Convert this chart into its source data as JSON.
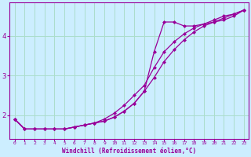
{
  "xlabel": "Windchill (Refroidissement éolien,°C)",
  "ylabel": "",
  "bg_color": "#cceeff",
  "line_color": "#990099",
  "grid_color": "#aaddcc",
  "line1_x": [
    0,
    1,
    2,
    3,
    4,
    5,
    6,
    7,
    8,
    9,
    10,
    11,
    12,
    13,
    14,
    15,
    16,
    17,
    18,
    19,
    20,
    21,
    22,
    23
  ],
  "line1_y": [
    1.9,
    1.65,
    1.65,
    1.65,
    1.65,
    1.65,
    1.7,
    1.75,
    1.8,
    1.85,
    1.95,
    2.1,
    2.3,
    2.6,
    2.95,
    3.35,
    3.65,
    3.9,
    4.1,
    4.25,
    4.35,
    4.45,
    4.55,
    4.65
  ],
  "line2_x": [
    0,
    1,
    2,
    3,
    4,
    5,
    6,
    7,
    8,
    9,
    10,
    11,
    12,
    13,
    14,
    15,
    16,
    17,
    18,
    19,
    20,
    21,
    22,
    23
  ],
  "line2_y": [
    1.9,
    1.65,
    1.65,
    1.65,
    1.65,
    1.65,
    1.7,
    1.75,
    1.8,
    1.85,
    1.95,
    2.1,
    2.3,
    2.6,
    3.6,
    4.35,
    4.35,
    4.25,
    4.25,
    4.3,
    4.35,
    4.4,
    4.5,
    4.65
  ],
  "line3_x": [
    0,
    1,
    2,
    3,
    4,
    5,
    6,
    7,
    8,
    9,
    10,
    11,
    12,
    13,
    14,
    15,
    16,
    17,
    18,
    19,
    20,
    21,
    22,
    23
  ],
  "line3_y": [
    1.9,
    1.65,
    1.65,
    1.65,
    1.65,
    1.65,
    1.7,
    1.75,
    1.8,
    1.9,
    2.05,
    2.25,
    2.5,
    2.75,
    3.2,
    3.6,
    3.85,
    4.05,
    4.2,
    4.3,
    4.4,
    4.5,
    4.55,
    4.65
  ],
  "xlim": [
    -0.5,
    23.5
  ],
  "ylim": [
    1.4,
    4.85
  ],
  "xticks": [
    0,
    1,
    2,
    3,
    4,
    5,
    6,
    7,
    8,
    9,
    10,
    11,
    12,
    13,
    14,
    15,
    16,
    17,
    18,
    19,
    20,
    21,
    22,
    23
  ],
  "yticks": [
    2,
    3,
    4
  ],
  "marker": "D",
  "markersize": 2.5
}
